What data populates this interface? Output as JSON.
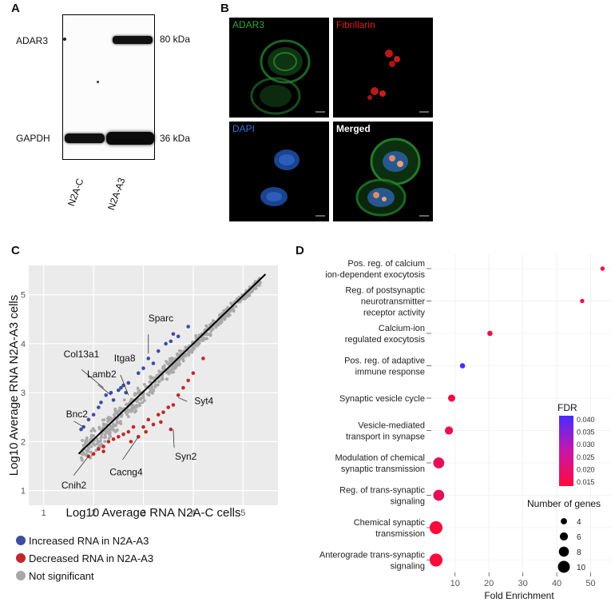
{
  "panel_a": {
    "label": "A",
    "row_labels": [
      "ADAR3",
      "GAPDH"
    ],
    "kda_labels": [
      "80 kDa",
      "36 kDa"
    ],
    "lanes": [
      "N2A-C",
      "N2A-A3"
    ]
  },
  "panel_b": {
    "label": "B",
    "tiles": [
      {
        "label": "ADAR3",
        "color": "#2fa83a"
      },
      {
        "label": "Fibrillarin",
        "color": "#e02020"
      },
      {
        "label": "DAPI",
        "color": "#3a6fd8"
      },
      {
        "label": "Merged",
        "color": "#ffffff"
      }
    ]
  },
  "panel_c": {
    "label": "C",
    "legend": [
      {
        "text": "Increased RNA in N2A-A3",
        "color": "#3b4fa0"
      },
      {
        "text": "Decreased RNA in N2A-A3",
        "color": "#c0282d"
      },
      {
        "text": "Not significant",
        "color": "#a8a8a8"
      }
    ],
    "chart_data": {
      "type": "scatter",
      "xlabel": "Log10 Average RNA N2A-C cells",
      "ylabel": "Log10 Average RNA N2A-A3 cells",
      "xlim": [
        0.7,
        5.7
      ],
      "ylim": [
        0.7,
        5.6
      ],
      "xticks": [
        1,
        2,
        3,
        4,
        5
      ],
      "yticks": [
        1,
        2,
        3,
        4,
        5
      ],
      "grid": true,
      "fit_line": {
        "x": [
          1.7,
          5.45
        ],
        "y": [
          1.75,
          5.42
        ]
      },
      "annotations": [
        {
          "text": "Sparc",
          "x": 3.1,
          "y": 3.8
        },
        {
          "text": "Itga8",
          "x": 2.7,
          "y": 2.95
        },
        {
          "text": "Col13a1",
          "x": 2.2,
          "y": 3.1
        },
        {
          "text": "Lamb2",
          "x": 2.35,
          "y": 2.95
        },
        {
          "text": "Bnc2",
          "x": 1.8,
          "y": 2.3
        },
        {
          "text": "Syt4",
          "x": 3.7,
          "y": 2.9
        },
        {
          "text": "Syn2",
          "x": 3.6,
          "y": 2.25
        },
        {
          "text": "Cacng4",
          "x": 2.9,
          "y": 2.1
        },
        {
          "text": "Cnih2",
          "x": 1.9,
          "y": 1.7
        }
      ],
      "series": [
        {
          "name": "Increased RNA in N2A-A3",
          "points": [
            [
              1.8,
              2.3
            ],
            [
              1.75,
              2.25
            ],
            [
              1.9,
              2.45
            ],
            [
              2.0,
              2.55
            ],
            [
              2.1,
              2.7
            ],
            [
              2.15,
              2.8
            ],
            [
              2.25,
              2.95
            ],
            [
              2.35,
              3.0
            ],
            [
              2.5,
              3.05
            ],
            [
              2.6,
              3.15
            ],
            [
              2.7,
              3.2
            ],
            [
              2.65,
              3.0
            ],
            [
              2.9,
              3.4
            ],
            [
              3.0,
              3.5
            ],
            [
              3.1,
              3.7
            ],
            [
              3.2,
              3.6
            ],
            [
              3.3,
              3.85
            ],
            [
              3.45,
              4.0
            ],
            [
              3.55,
              4.05
            ],
            [
              3.6,
              4.2
            ],
            [
              3.7,
              4.15
            ],
            [
              3.9,
              4.35
            ],
            [
              2.4,
              2.85
            ],
            [
              2.55,
              3.1
            ]
          ]
        },
        {
          "name": "Decreased RNA in N2A-A3",
          "points": [
            [
              1.9,
              1.7
            ],
            [
              2.0,
              1.75
            ],
            [
              2.1,
              1.85
            ],
            [
              2.2,
              1.9
            ],
            [
              2.3,
              2.0
            ],
            [
              2.4,
              2.05
            ],
            [
              2.5,
              2.1
            ],
            [
              2.6,
              2.15
            ],
            [
              2.7,
              2.2
            ],
            [
              2.8,
              2.3
            ],
            [
              2.9,
              2.1
            ],
            [
              3.0,
              2.3
            ],
            [
              3.1,
              2.45
            ],
            [
              3.2,
              2.35
            ],
            [
              3.3,
              2.55
            ],
            [
              3.4,
              2.6
            ],
            [
              3.5,
              2.7
            ],
            [
              3.6,
              2.75
            ],
            [
              3.7,
              2.95
            ],
            [
              3.8,
              3.1
            ],
            [
              3.9,
              3.25
            ],
            [
              4.0,
              3.4
            ],
            [
              4.2,
              3.7
            ],
            [
              3.55,
              2.25
            ],
            [
              2.75,
              2.0
            ],
            [
              2.2,
              1.8
            ],
            [
              3.35,
              2.4
            ],
            [
              3.05,
              2.2
            ]
          ]
        }
      ]
    }
  },
  "panel_d": {
    "label": "D",
    "chart_data": {
      "type": "scatter",
      "xlabel": "Fold Enrichment",
      "xticks": [
        10,
        20,
        30,
        40,
        50
      ],
      "xlim": [
        3,
        56
      ],
      "categories": [
        [
          "Pos. reg. of calcium",
          "ion-dependent exocytosis"
        ],
        [
          "Reg. of postsynaptic",
          "neurotransmitter",
          "receptor activity"
        ],
        [
          "Calcium-ion",
          "regulated exocytosis"
        ],
        [
          "Pos. reg. of adaptive",
          "immune response"
        ],
        [
          "Synaptic vesicle cycle"
        ],
        [
          "Vesicle-mediated",
          "transport in synapse"
        ],
        [
          "Modulation of chemical",
          "synaptic transmission"
        ],
        [
          "Reg. of trans-synaptic",
          "signaling"
        ],
        [
          "Chemical synaptic",
          "transmission"
        ],
        [
          "Anterograde trans-synaptic",
          "signaling"
        ]
      ],
      "fold_enrichment": [
        53.5,
        47.5,
        20.3,
        12.2,
        9.0,
        8.2,
        5.2,
        5.2,
        4.4,
        4.4
      ],
      "fdr": [
        0.0155,
        0.0155,
        0.016,
        0.042,
        0.016,
        0.0175,
        0.0185,
        0.019,
        0.0152,
        0.0152
      ],
      "gene_count": [
        2,
        2,
        3,
        3,
        5,
        6,
        9,
        9,
        11,
        11
      ],
      "fdr_legend": {
        "title": "FDR",
        "ticks": [
          "0.040",
          "0.035",
          "0.030",
          "0.025",
          "0.020",
          "0.015"
        ],
        "range": [
          0.015,
          0.042
        ],
        "colors": [
          "#ff0a3c",
          "#4a2cff"
        ]
      },
      "size_legend": {
        "title": "Number of genes",
        "values": [
          "4",
          "6",
          "8",
          "10"
        ]
      }
    }
  }
}
